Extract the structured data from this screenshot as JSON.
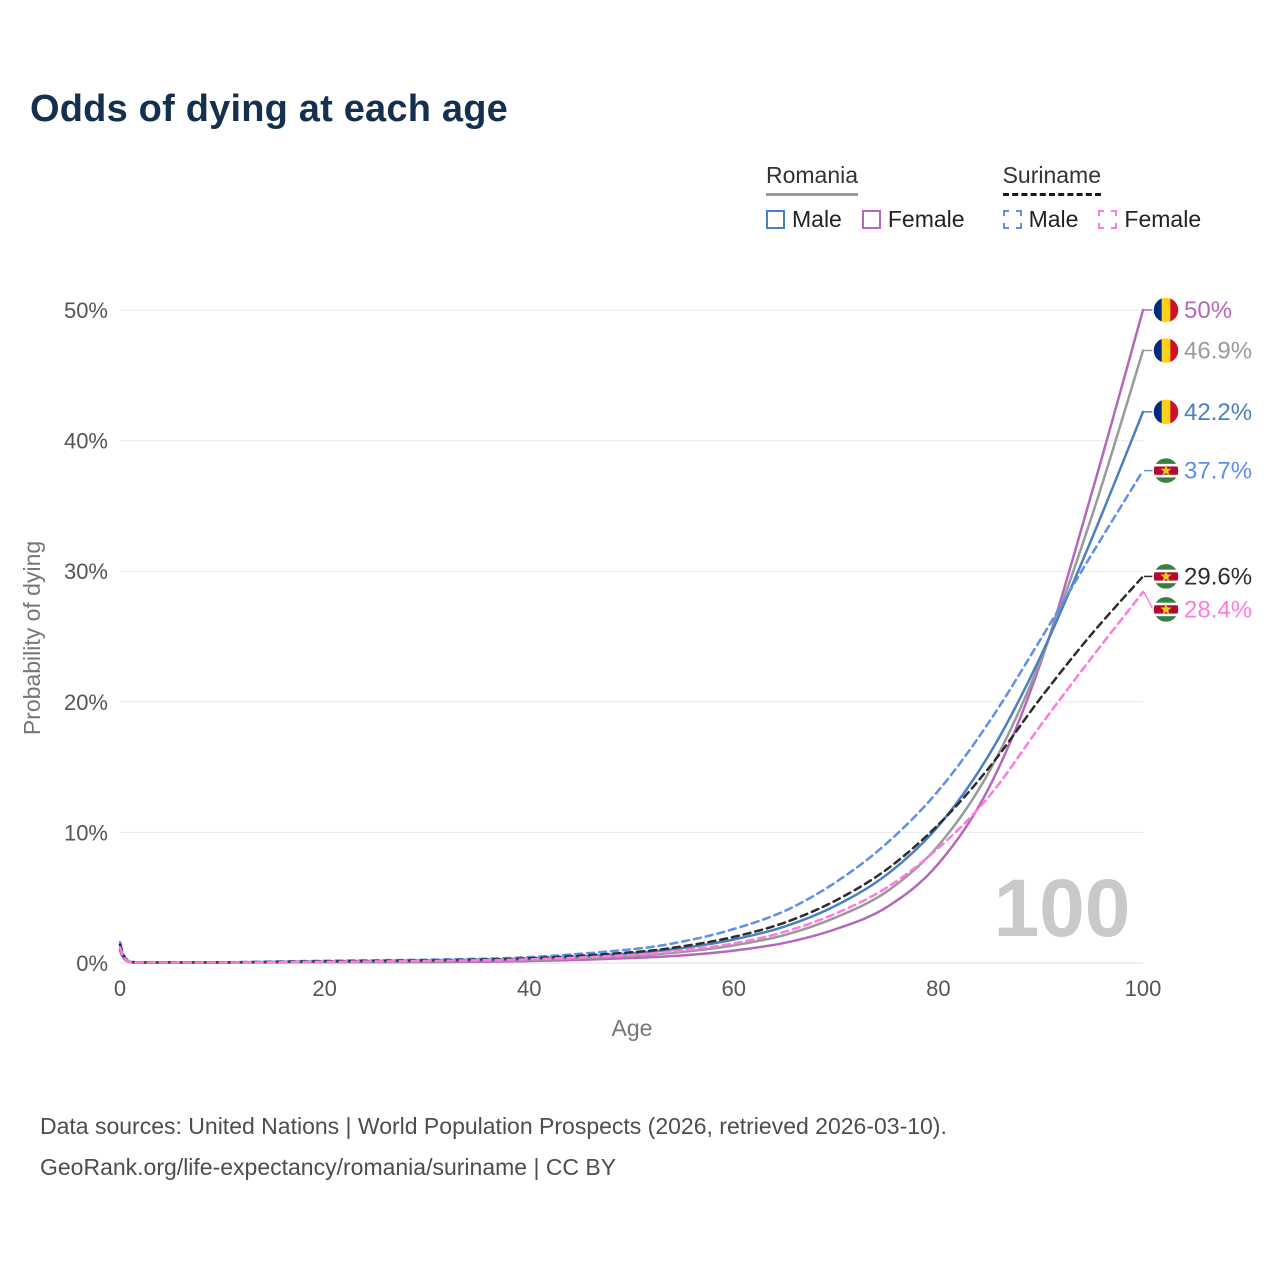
{
  "title": "Odds of dying at each age",
  "legend": {
    "groups": [
      {
        "name": "Romania",
        "line_style": "solid",
        "items": [
          {
            "label": "Male",
            "color": "#4a7fc1",
            "dashed": false
          },
          {
            "label": "Female",
            "color": "#b468bc",
            "dashed": false
          }
        ]
      },
      {
        "name": "Suriname",
        "line_style": "dashed",
        "items": [
          {
            "label": "Male",
            "color": "#5f8fe8",
            "dashed": true
          },
          {
            "label": "Female",
            "color": "#ff7bdc",
            "dashed": true
          }
        ]
      }
    ]
  },
  "chart_data": {
    "type": "line",
    "title": "Odds of dying at each age",
    "xlabel": "Age",
    "ylabel": "Probability of dying",
    "xlim": [
      0,
      100
    ],
    "ylim_pct": [
      0,
      50
    ],
    "xticks": [
      0,
      20,
      40,
      60,
      80,
      100
    ],
    "yticks_pct": [
      0,
      10,
      20,
      30,
      40,
      50
    ],
    "grid": "horizontal",
    "legend_position": "top-right",
    "watermark": "100",
    "x_ages": [
      0,
      1,
      5,
      10,
      20,
      30,
      40,
      50,
      55,
      60,
      65,
      70,
      75,
      80,
      85,
      90,
      95,
      100
    ],
    "series": [
      {
        "name": "Romania Female",
        "country": "Romania",
        "flag": "ro",
        "color": "#b468bc",
        "dashed": false,
        "end_label": "50%",
        "end_value_pct": 50.0,
        "values_pct": [
          0.9,
          0.06,
          0.03,
          0.03,
          0.05,
          0.07,
          0.15,
          0.38,
          0.58,
          0.95,
          1.55,
          2.6,
          4.3,
          7.6,
          13.5,
          23.0,
          36.0,
          50.0
        ]
      },
      {
        "name": "Romania Both sexes",
        "country": "Romania",
        "flag": "ro",
        "color": "#9a9a9a",
        "dashed": false,
        "end_label": "46.9%",
        "end_value_pct": 46.9,
        "values_pct": [
          1.0,
          0.07,
          0.035,
          0.035,
          0.07,
          0.11,
          0.22,
          0.55,
          0.85,
          1.35,
          2.15,
          3.5,
          5.5,
          9.0,
          14.7,
          23.2,
          34.2,
          46.9
        ]
      },
      {
        "name": "Romania Male",
        "country": "Romania",
        "flag": "ro",
        "color": "#4a7fc1",
        "dashed": false,
        "end_label": "42.2%",
        "end_value_pct": 42.2,
        "values_pct": [
          1.1,
          0.08,
          0.04,
          0.04,
          0.1,
          0.15,
          0.3,
          0.75,
          1.15,
          1.8,
          2.8,
          4.4,
          6.8,
          10.5,
          16.0,
          23.5,
          32.5,
          42.2
        ]
      },
      {
        "name": "Suriname Male",
        "country": "Suriname",
        "flag": "sr",
        "color": "#5f8fe8",
        "dashed": true,
        "end_label": "37.7%",
        "end_value_pct": 37.7,
        "values_pct": [
          1.6,
          0.1,
          0.05,
          0.05,
          0.17,
          0.25,
          0.45,
          1.05,
          1.65,
          2.6,
          4.0,
          6.2,
          9.2,
          13.2,
          18.5,
          24.8,
          31.3,
          37.7
        ]
      },
      {
        "name": "Suriname Both sexes",
        "country": "Suriname",
        "flag": "sr",
        "color": "#2d2d2d",
        "dashed": true,
        "end_label": "29.6%",
        "end_value_pct": 29.6,
        "values_pct": [
          1.4,
          0.09,
          0.045,
          0.045,
          0.13,
          0.2,
          0.36,
          0.82,
          1.28,
          2.0,
          3.1,
          4.8,
          7.2,
          10.6,
          15.0,
          20.3,
          25.2,
          29.6
        ]
      },
      {
        "name": "Suriname Female",
        "country": "Suriname",
        "flag": "sr",
        "color": "#ff7bdc",
        "dashed": true,
        "end_label": "28.4%",
        "end_value_pct": 28.4,
        "values_pct": [
          1.2,
          0.08,
          0.04,
          0.04,
          0.09,
          0.16,
          0.28,
          0.62,
          0.97,
          1.5,
          2.4,
          3.8,
          5.8,
          8.8,
          12.8,
          18.2,
          23.4,
          28.4
        ]
      }
    ],
    "flag_colors": {
      "ro": [
        "#002b7f",
        "#fcd116",
        "#ce1126"
      ],
      "sr": {
        "green": "#377e3f",
        "white": "#ffffff",
        "red": "#b40a2d",
        "star": "#ecc81d"
      }
    }
  },
  "footer": {
    "line1": "Data sources: United Nations | World Population Prospects (2026, retrieved 2026-03-10).",
    "line2": "GeoRank.org/life-expectancy/romania/suriname | CC BY"
  }
}
